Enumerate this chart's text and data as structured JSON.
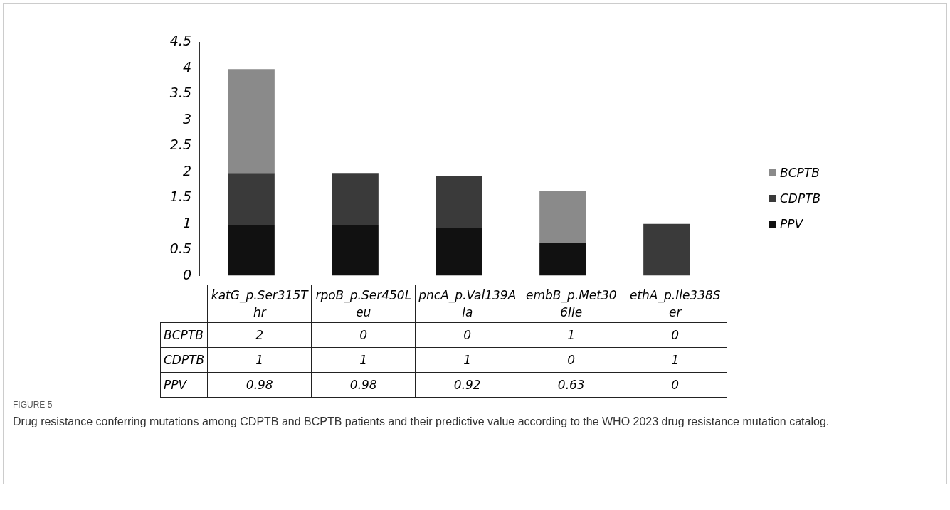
{
  "chart_data": {
    "type": "bar",
    "stacked": true,
    "categories": [
      "katG_p.Ser315Thr",
      "rpoB_p.Ser450Leu",
      "pncA_p.Val139Ala",
      "embB_p.Met306Ile",
      "ethA_p.Ile338Ser"
    ],
    "series": [
      {
        "name": "PPV",
        "color": "#111111",
        "values": [
          0.98,
          0.98,
          0.92,
          0.63,
          0
        ]
      },
      {
        "name": "CDPTB",
        "color": "#3a3a3a",
        "values": [
          1,
          1,
          1,
          0,
          1
        ]
      },
      {
        "name": "BCPTB",
        "color": "#8a8a8a",
        "values": [
          2,
          0,
          0,
          1,
          0
        ]
      }
    ],
    "ylim": [
      0,
      4.5
    ],
    "yticks": [
      0,
      0.5,
      1,
      1.5,
      2,
      2.5,
      3,
      3.5,
      4,
      4.5
    ],
    "grid": false,
    "legend": "right",
    "data_labels": true,
    "annotations": [
      "FIGURE 5",
      "Drug resistance conferring mutations among CDPTB and BCPTB patients and their predictive value according to the WHO 2023 drug resistance mutation catalog."
    ]
  }
}
